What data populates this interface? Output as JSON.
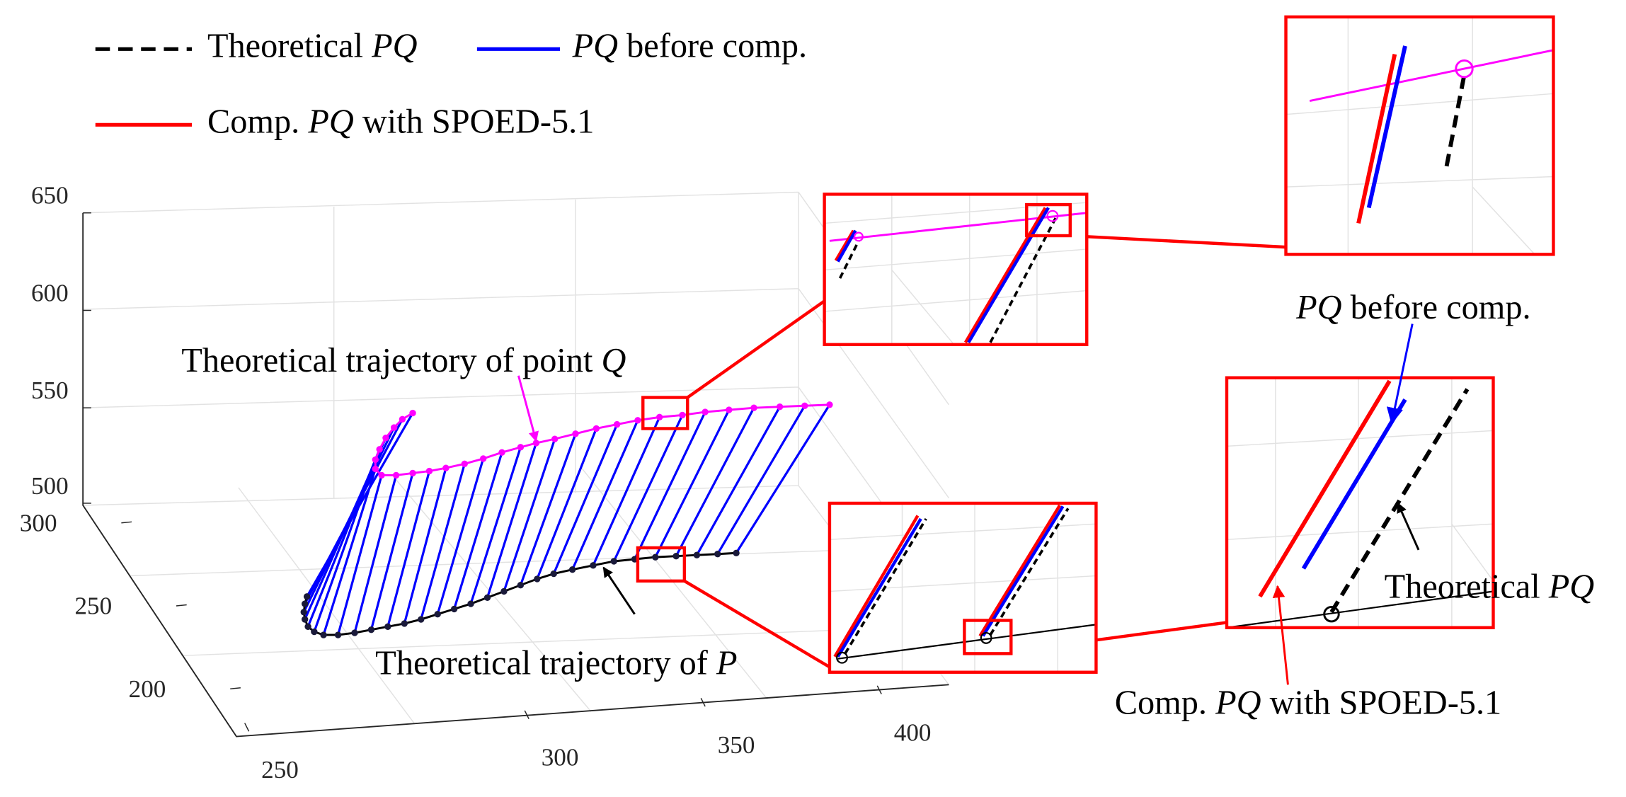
{
  "chart_data": {
    "type": "line3d",
    "series": [
      {
        "name": "Theoretical PQ",
        "italic": "PQ",
        "color": "#000000",
        "dash": true
      },
      {
        "name": "PQ before comp.",
        "italic": "PQ",
        "color": "#0000ff",
        "dash": false
      },
      {
        "name": "Comp. PQ with SPOED-5.1",
        "italic": "PQ",
        "color": "#ff0000",
        "dash": false
      }
    ],
    "zticks": [
      650,
      600,
      550,
      500
    ],
    "yticks": [
      300,
      250,
      200
    ],
    "xticks": [
      250,
      300,
      350,
      400
    ],
    "annotations": [
      {
        "text": "Theoretical trajectory of point Q",
        "italic": "Q"
      },
      {
        "text": "Theoretical trajectory of P",
        "italic": "P"
      },
      {
        "text": "PQ before comp.",
        "italic": "PQ"
      },
      {
        "text": "Theoretical PQ",
        "italic": "PQ"
      },
      {
        "text": "Comp. PQ with SPOED-5.1",
        "italic": "PQ"
      }
    ]
  }
}
